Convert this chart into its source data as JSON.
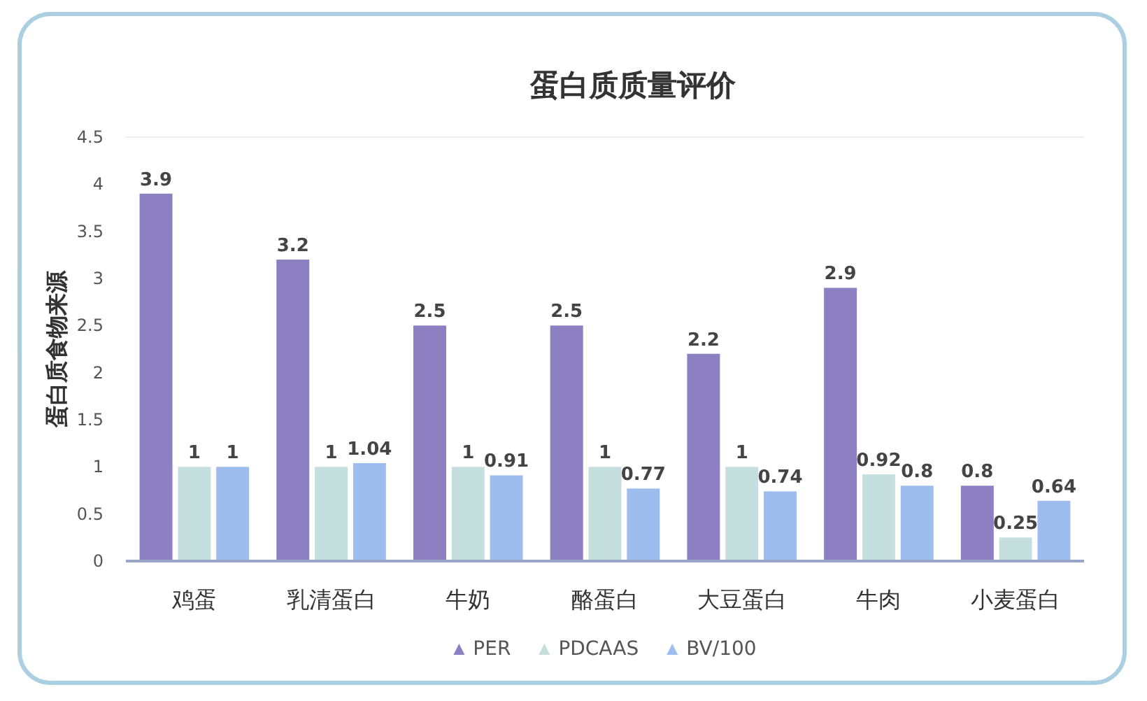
{
  "chart_data": {
    "type": "bar",
    "title": "蛋白质质量评价",
    "ylabel": "蛋白质食物来源",
    "categories": [
      "鸡蛋",
      "乳清蛋白",
      "牛奶",
      "酪蛋白",
      "大豆蛋白",
      "牛肉",
      "小麦蛋白"
    ],
    "series": [
      {
        "name": "PER",
        "color": "#8c7fc2",
        "values": [
          3.9,
          3.2,
          2.5,
          2.5,
          2.2,
          2.9,
          0.8
        ]
      },
      {
        "name": "PDCAAS",
        "color": "#c5dfdf",
        "values": [
          1,
          1,
          1,
          1,
          1,
          0.92,
          0.25
        ]
      },
      {
        "name": "BV/100",
        "color": "#9dbdee",
        "values": [
          1,
          1.04,
          0.91,
          0.77,
          0.74,
          0.8,
          0.64
        ]
      }
    ],
    "ylim": [
      0,
      4.5
    ],
    "yticks": [
      0,
      0.5,
      1,
      1.5,
      2,
      2.5,
      3,
      3.5,
      4,
      4.5
    ],
    "data_labels": true,
    "legend": "bottom",
    "grid": false
  }
}
